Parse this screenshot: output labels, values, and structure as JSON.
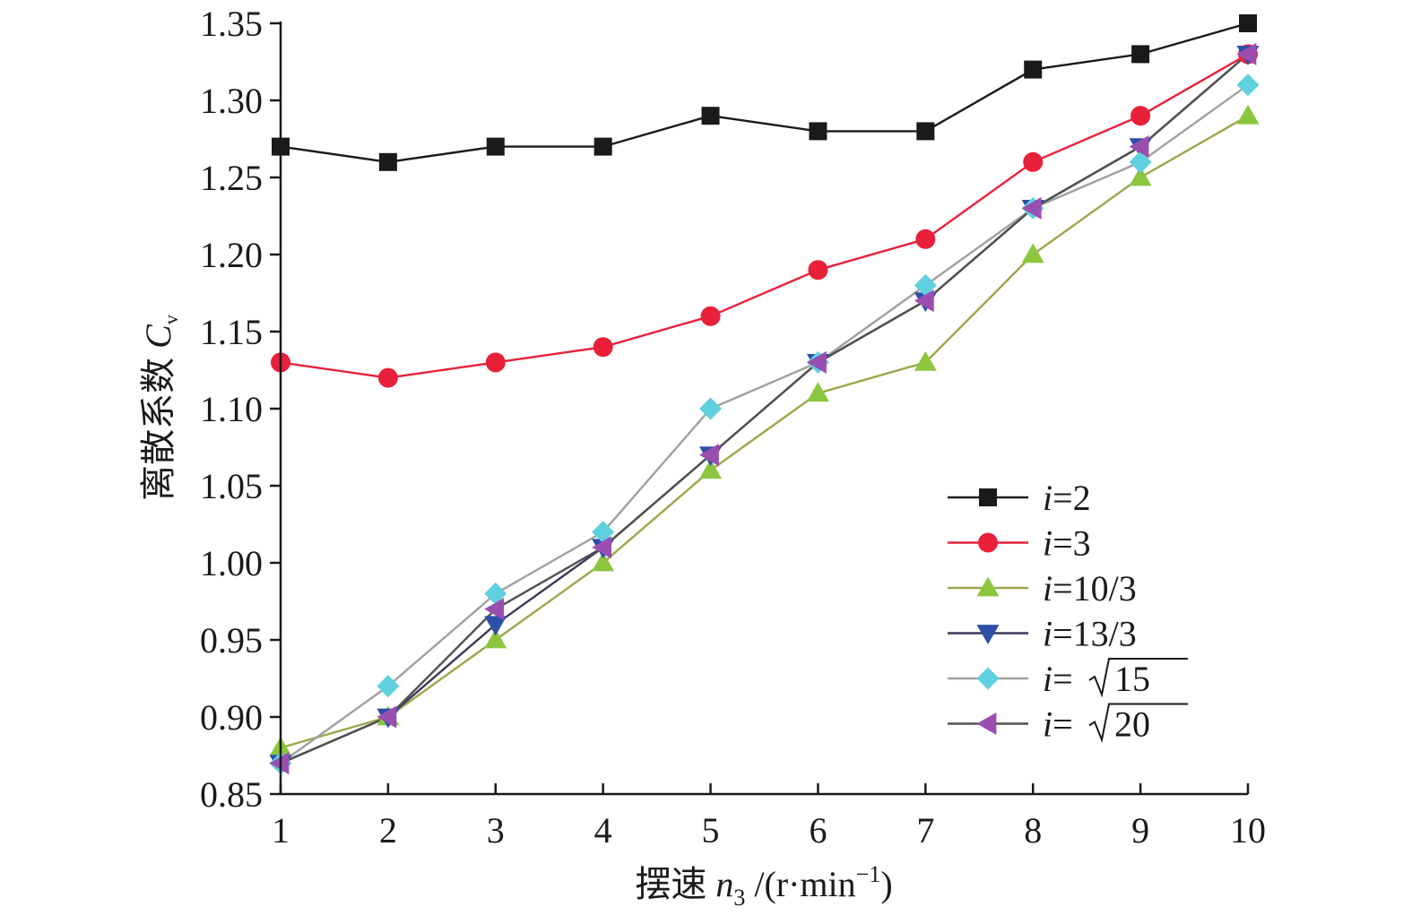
{
  "chart_data": {
    "type": "line",
    "xlabel": {
      "prefix": "摆速 ",
      "var": "n",
      "sub": "3",
      "unit_open": " /(r·min",
      "unit_sup": "−1",
      "unit_close": ")"
    },
    "ylabel": {
      "prefix": "离散系数 ",
      "var": "C",
      "sub": "v"
    },
    "xlim": [
      1,
      10
    ],
    "ylim": [
      0.85,
      1.35
    ],
    "x_ticks": [
      "1",
      "2",
      "3",
      "4",
      "5",
      "6",
      "7",
      "8",
      "9",
      "10"
    ],
    "y_ticks": [
      "0.85",
      "0.90",
      "0.95",
      "1.00",
      "1.05",
      "1.10",
      "1.15",
      "1.20",
      "1.25",
      "1.30",
      "1.35"
    ],
    "x": [
      1,
      2,
      3,
      4,
      5,
      6,
      7,
      8,
      9,
      10
    ],
    "legend_position": "center-right",
    "grid": false,
    "series": [
      {
        "name": "i=2",
        "label_var": "i",
        "label_rest": "=2",
        "sqrt": false,
        "marker": "square",
        "color": "#1a1a1a",
        "line_color": "#1a1a1a",
        "values": [
          1.27,
          1.26,
          1.27,
          1.27,
          1.29,
          1.28,
          1.28,
          1.32,
          1.33,
          1.35
        ]
      },
      {
        "name": "i=3",
        "label_var": "i",
        "label_rest": "=3",
        "sqrt": false,
        "marker": "circle",
        "color": "#e8203a",
        "line_color": "#e8203a",
        "values": [
          1.13,
          1.12,
          1.13,
          1.14,
          1.16,
          1.19,
          1.21,
          1.26,
          1.29,
          1.33
        ]
      },
      {
        "name": "i=10/3",
        "label_var": "i",
        "label_rest": "=10/3",
        "sqrt": false,
        "marker": "triangle-up",
        "color": "#8cc63f",
        "line_color": "#9aa84a",
        "values": [
          0.88,
          0.9,
          0.95,
          1.0,
          1.06,
          1.11,
          1.13,
          1.2,
          1.25,
          1.29
        ]
      },
      {
        "name": "i=13/3",
        "label_var": "i",
        "label_rest": "=13/3",
        "sqrt": false,
        "marker": "triangle-down",
        "color": "#2e4fa8",
        "line_color": "#3a3a5a",
        "values": [
          0.87,
          0.9,
          0.96,
          1.01,
          1.07,
          1.13,
          1.17,
          1.23,
          1.27,
          1.33
        ]
      },
      {
        "name": "i=√15",
        "label_var": "i",
        "label_rest": "=",
        "sqrt": true,
        "radicand": "15",
        "marker": "diamond",
        "color": "#5fd0e0",
        "line_color": "#a0a0a0",
        "values": [
          0.87,
          0.92,
          0.98,
          1.02,
          1.1,
          1.13,
          1.18,
          1.23,
          1.26,
          1.31
        ]
      },
      {
        "name": "i=√20",
        "label_var": "i",
        "label_rest": "=",
        "sqrt": true,
        "radicand": "20",
        "marker": "triangle-left",
        "color": "#9a4fb0",
        "line_color": "#505050",
        "values": [
          0.87,
          0.9,
          0.97,
          1.01,
          1.07,
          1.13,
          1.17,
          1.23,
          1.27,
          1.33
        ]
      }
    ]
  }
}
